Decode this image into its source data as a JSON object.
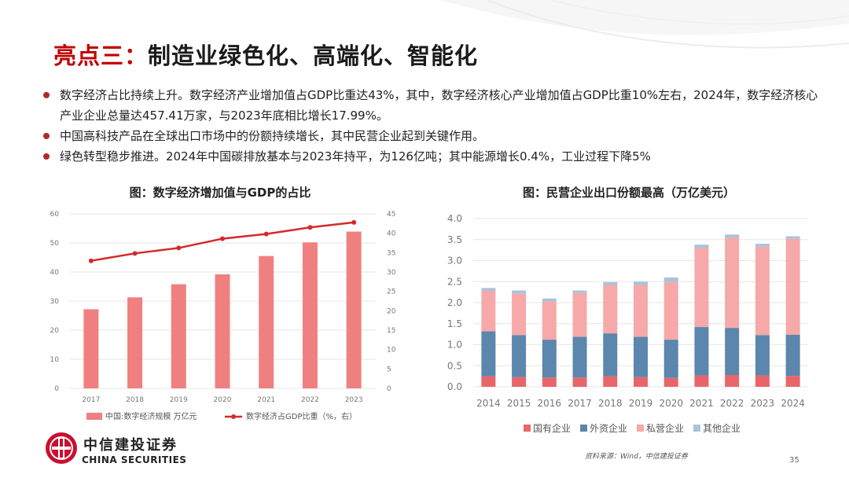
{
  "slide": {
    "title_highlight": "亮点三：",
    "title_rest": "制造业绿色化、高端化、智能化",
    "bullets": [
      "数字经济占比持续上升。数字经济产业增加值占GDP比重达43%，其中，数字经济核心产业增加值占GDP比重10%左右，2024年，数字经济核心产业企业总量达457.41万家，与2023年底相比增长17.99%。",
      "中国高科技产品在全球出口市场中的份额持续增长，其中民营企业起到关键作用。",
      "绿色转型稳步推进。2024年中国碳排放基本与2023年持平，为126亿吨；其中能源增长0.4%，工业过程下降5%"
    ],
    "logo_cn": "中信建投证券",
    "logo_en": "CHINA SECURITIES",
    "source": "资料来源：Wind，中信建投证券",
    "page_number": "35",
    "colors": {
      "brand_red": "#c00000",
      "bullet": "#b02a2a"
    }
  },
  "chart_data": [
    {
      "type": "bar+line",
      "title": "图：数字经济增加值与GDP的占比",
      "categories": [
        "2017",
        "2018",
        "2019",
        "2020",
        "2021",
        "2022",
        "2023"
      ],
      "series": [
        {
          "name": "中国:数字经济规模 万亿元",
          "kind": "bar",
          "axis": "left",
          "color": "#f08080",
          "values": [
            27.2,
            31.3,
            35.8,
            39.2,
            45.5,
            50.2,
            53.9
          ]
        },
        {
          "name": "数字经济占GDP比重（%，右）",
          "kind": "line",
          "axis": "right",
          "color": "#d42a2a",
          "values": [
            32.9,
            34.8,
            36.2,
            38.6,
            39.8,
            41.5,
            42.8
          ]
        }
      ],
      "y_left": {
        "min": 0,
        "max": 60,
        "ticks": [
          0,
          10,
          20,
          30,
          40,
          50,
          60
        ]
      },
      "y_right": {
        "min": 0,
        "max": 45,
        "ticks": [
          0,
          5,
          10,
          15,
          20,
          25,
          30,
          35,
          40,
          45
        ]
      },
      "grid": true,
      "legend": "bottom"
    },
    {
      "type": "stacked bar",
      "title": "图：民营企业出口份额最高（万亿美元）",
      "categories": [
        "2014",
        "2015",
        "2016",
        "2017",
        "2018",
        "2019",
        "2020",
        "2021",
        "2022",
        "2023",
        "2024"
      ],
      "series": [
        {
          "name": "国有企业",
          "color": "#e8666a",
          "values": [
            0.25,
            0.23,
            0.22,
            0.22,
            0.25,
            0.23,
            0.21,
            0.27,
            0.28,
            0.27,
            0.26
          ]
        },
        {
          "name": "外资企业",
          "color": "#5b86ad",
          "values": [
            1.07,
            1.0,
            0.9,
            0.97,
            1.02,
            0.96,
            0.91,
            1.15,
            1.12,
            0.96,
            0.98
          ]
        },
        {
          "name": "私营企业",
          "color": "#f6a9a8",
          "values": [
            0.96,
            0.99,
            0.91,
            1.04,
            1.15,
            1.23,
            1.38,
            1.88,
            2.15,
            2.1,
            2.28
          ]
        },
        {
          "name": "其他企业",
          "color": "#a9c3dc",
          "values": [
            0.07,
            0.07,
            0.07,
            0.06,
            0.07,
            0.08,
            0.1,
            0.08,
            0.07,
            0.07,
            0.06
          ]
        }
      ],
      "y": {
        "min": 0,
        "max": 4.0,
        "ticks": [
          "0.0",
          "0.5",
          "1.0",
          "1.5",
          "2.0",
          "2.5",
          "3.0",
          "3.5",
          "4.0"
        ]
      },
      "grid": true,
      "legend": "bottom"
    }
  ]
}
